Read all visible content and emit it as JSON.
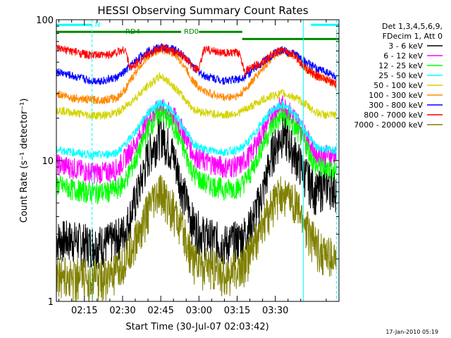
{
  "chart_data": {
    "type": "line",
    "title": "HESSI Observing Summary Count Rates",
    "xlabel": "Start Time (30-Jul-07 02:03:42)",
    "ylabel": "Count Rate (s⁻¹ detector⁻¹)",
    "yscale": "log",
    "xlim_minutes": [
      124,
      235
    ],
    "ylim": [
      1,
      100
    ],
    "x_ticks": [
      "02:15",
      "02:30",
      "02:45",
      "03:00",
      "03:15",
      "03:30"
    ],
    "x_tick_minutes": [
      135,
      150,
      165,
      180,
      195,
      210
    ],
    "y_ticks": [
      "1",
      "10",
      "100"
    ],
    "legend": {
      "placement": "right",
      "header_lines": [
        "Det 1,3,4,5,6,9,",
        "FDecim 1, Att 0"
      ],
      "entries": [
        {
          "label": "3 - 6 keV",
          "color": "#000000"
        },
        {
          "label": "6 - 12 keV",
          "color": "#ff00ff"
        },
        {
          "label": "12 - 25 keV",
          "color": "#00ff00"
        },
        {
          "label": "25 - 50 keV",
          "color": "#00ffff"
        },
        {
          "label": "50 - 100 keV",
          "color": "#d4d400"
        },
        {
          "label": "100 - 300 keV",
          "color": "#ff8800"
        },
        {
          "label": "300 - 800 keV",
          "color": "#0000ff"
        },
        {
          "label": "800 - 7000 keV",
          "color": "#ff0000"
        },
        {
          "label": "7000 - 20000 keV",
          "color": "#808000"
        }
      ]
    },
    "flag_bars": [
      {
        "label": "N",
        "color": "#00ffff",
        "x_start": 124,
        "x_end": 138,
        "y": 92
      },
      {
        "label": "",
        "color": "#00ffff",
        "x_start": 224,
        "x_end": 235,
        "y": 92
      },
      {
        "label": "RD4",
        "color": "#008800",
        "x_start": 124,
        "x_end": 150,
        "y": 82
      },
      {
        "label": "RD0",
        "color": "#008800",
        "x_start": 150,
        "x_end": 173,
        "y": 82
      },
      {
        "label": "",
        "color": "#008800",
        "x_start": 180,
        "x_end": 197,
        "y": 82
      },
      {
        "label": "",
        "color": "#008800",
        "x_start": 197,
        "x_end": 235,
        "y": 73
      }
    ],
    "vertical_lines": [
      {
        "x": 124,
        "color": "#00ffff",
        "style": "solid"
      },
      {
        "x": 138,
        "color": "#00ffff",
        "style": "dashed"
      },
      {
        "x": 221,
        "color": "#00ffff",
        "style": "solid"
      },
      {
        "x": 234,
        "color": "#00ffff",
        "style": "dashed"
      }
    ],
    "series": [
      {
        "name": "3 - 6 keV",
        "color": "#000000",
        "values": [
          [
            124,
            2.8
          ],
          [
            130,
            2.8
          ],
          [
            137,
            2.6
          ],
          [
            143,
            2.6
          ],
          [
            147,
            2.8
          ],
          [
            151,
            3.2
          ],
          [
            156,
            6
          ],
          [
            160,
            11
          ],
          [
            165,
            16
          ],
          [
            170,
            11
          ],
          [
            174,
            6
          ],
          [
            178,
            3.5
          ],
          [
            182,
            3.0
          ],
          [
            190,
            2.6
          ],
          [
            196,
            2.8
          ],
          [
            200,
            3.4
          ],
          [
            205,
            6
          ],
          [
            209,
            12
          ],
          [
            213,
            16
          ],
          [
            218,
            11
          ],
          [
            222,
            8
          ],
          [
            226,
            6
          ],
          [
            230,
            7
          ],
          [
            234,
            6.5
          ]
        ]
      },
      {
        "name": "6 - 12 keV",
        "color": "#ff00ff",
        "values": [
          [
            124,
            9.5
          ],
          [
            130,
            9
          ],
          [
            137,
            8.3
          ],
          [
            143,
            8.3
          ],
          [
            148,
            8.8
          ],
          [
            151,
            10.5
          ],
          [
            156,
            14
          ],
          [
            160,
            20
          ],
          [
            165,
            24
          ],
          [
            170,
            21
          ],
          [
            174,
            16
          ],
          [
            178,
            11
          ],
          [
            182,
            10
          ],
          [
            190,
            9
          ],
          [
            196,
            9.3
          ],
          [
            200,
            11
          ],
          [
            205,
            16
          ],
          [
            209,
            22
          ],
          [
            213,
            25
          ],
          [
            218,
            20
          ],
          [
            222,
            15
          ],
          [
            226,
            11
          ],
          [
            230,
            11
          ],
          [
            234,
            11
          ]
        ]
      },
      {
        "name": "12 - 25 keV",
        "color": "#00ff00",
        "values": [
          [
            124,
            6.8
          ],
          [
            130,
            6.3
          ],
          [
            137,
            6.0
          ],
          [
            143,
            6.0
          ],
          [
            148,
            6.3
          ],
          [
            151,
            7.2
          ],
          [
            156,
            11
          ],
          [
            160,
            17
          ],
          [
            165,
            22
          ],
          [
            170,
            18
          ],
          [
            174,
            12
          ],
          [
            178,
            8
          ],
          [
            182,
            7
          ],
          [
            190,
            6.3
          ],
          [
            196,
            6.5
          ],
          [
            200,
            8
          ],
          [
            205,
            13
          ],
          [
            209,
            18
          ],
          [
            213,
            21
          ],
          [
            218,
            17
          ],
          [
            222,
            13
          ],
          [
            226,
            9
          ],
          [
            230,
            9
          ],
          [
            234,
            8.5
          ]
        ]
      },
      {
        "name": "25 - 50 keV",
        "color": "#00ffff",
        "values": [
          [
            124,
            12
          ],
          [
            130,
            11.5
          ],
          [
            137,
            11
          ],
          [
            143,
            11
          ],
          [
            148,
            11.5
          ],
          [
            151,
            13
          ],
          [
            156,
            17
          ],
          [
            160,
            22
          ],
          [
            165,
            26
          ],
          [
            170,
            22
          ],
          [
            174,
            17
          ],
          [
            178,
            13
          ],
          [
            182,
            12
          ],
          [
            190,
            11.5
          ],
          [
            196,
            12
          ],
          [
            200,
            14
          ],
          [
            205,
            19
          ],
          [
            209,
            23
          ],
          [
            213,
            25
          ],
          [
            218,
            21
          ],
          [
            222,
            16
          ],
          [
            226,
            12.5
          ],
          [
            230,
            12
          ],
          [
            234,
            12
          ]
        ]
      },
      {
        "name": "50 - 100 keV",
        "color": "#d4d400",
        "values": [
          [
            124,
            23
          ],
          [
            130,
            22
          ],
          [
            137,
            21
          ],
          [
            143,
            21
          ],
          [
            148,
            22
          ],
          [
            151,
            24
          ],
          [
            156,
            29
          ],
          [
            160,
            34
          ],
          [
            165,
            40
          ],
          [
            170,
            34
          ],
          [
            174,
            28
          ],
          [
            178,
            23
          ],
          [
            182,
            22
          ],
          [
            190,
            21
          ],
          [
            196,
            22
          ],
          [
            200,
            24
          ],
          [
            205,
            27
          ],
          [
            209,
            29
          ],
          [
            213,
            30
          ],
          [
            218,
            28
          ],
          [
            222,
            25
          ],
          [
            226,
            22
          ],
          [
            230,
            21
          ],
          [
            234,
            21
          ]
        ]
      },
      {
        "name": "100 - 300 keV",
        "color": "#ff8800",
        "values": [
          [
            124,
            30
          ],
          [
            130,
            28
          ],
          [
            137,
            27
          ],
          [
            143,
            27
          ],
          [
            148,
            28
          ],
          [
            151,
            32
          ],
          [
            156,
            45
          ],
          [
            160,
            55
          ],
          [
            165,
            62
          ],
          [
            170,
            58
          ],
          [
            174,
            48
          ],
          [
            178,
            36
          ],
          [
            182,
            31
          ],
          [
            190,
            28
          ],
          [
            196,
            29
          ],
          [
            200,
            35
          ],
          [
            205,
            45
          ],
          [
            209,
            55
          ],
          [
            213,
            60
          ],
          [
            218,
            55
          ],
          [
            222,
            45
          ],
          [
            226,
            40
          ],
          [
            230,
            38
          ],
          [
            234,
            34
          ]
        ]
      },
      {
        "name": "300 - 800 keV",
        "color": "#0000ff",
        "values": [
          [
            124,
            43
          ],
          [
            130,
            40
          ],
          [
            137,
            37
          ],
          [
            143,
            37
          ],
          [
            148,
            39
          ],
          [
            151,
            43
          ],
          [
            156,
            53
          ],
          [
            160,
            60
          ],
          [
            165,
            64
          ],
          [
            170,
            62
          ],
          [
            174,
            56
          ],
          [
            178,
            46
          ],
          [
            182,
            40
          ],
          [
            190,
            37
          ],
          [
            196,
            38
          ],
          [
            200,
            42
          ],
          [
            205,
            50
          ],
          [
            209,
            57
          ],
          [
            213,
            61
          ],
          [
            218,
            57
          ],
          [
            222,
            50
          ],
          [
            226,
            45
          ],
          [
            230,
            43
          ],
          [
            234,
            39
          ]
        ]
      },
      {
        "name": "800 - 7000 keV",
        "color": "#ff0000",
        "values": [
          [
            124,
            62
          ],
          [
            130,
            60
          ],
          [
            137,
            56
          ],
          [
            143,
            56
          ],
          [
            148,
            59
          ],
          [
            151,
            62
          ],
          [
            153,
            45
          ],
          [
            156,
            50
          ],
          [
            160,
            57
          ],
          [
            165,
            63
          ],
          [
            170,
            60
          ],
          [
            174,
            55
          ],
          [
            178,
            45
          ],
          [
            180,
            44
          ],
          [
            182,
            62
          ],
          [
            190,
            58
          ],
          [
            196,
            58
          ],
          [
            198,
            43
          ],
          [
            205,
            50
          ],
          [
            209,
            57
          ],
          [
            213,
            61
          ],
          [
            218,
            55
          ],
          [
            222,
            45
          ],
          [
            226,
            40
          ],
          [
            230,
            38
          ],
          [
            234,
            35
          ]
        ]
      },
      {
        "name": "7000 - 20000 keV",
        "color": "#808000",
        "values": [
          [
            124,
            1.6
          ],
          [
            130,
            1.5
          ],
          [
            137,
            1.5
          ],
          [
            143,
            1.5
          ],
          [
            148,
            1.6
          ],
          [
            151,
            2.0
          ],
          [
            156,
            3.0
          ],
          [
            160,
            4.5
          ],
          [
            165,
            6
          ],
          [
            170,
            4.5
          ],
          [
            174,
            3.0
          ],
          [
            178,
            2.0
          ],
          [
            182,
            1.8
          ],
          [
            190,
            1.6
          ],
          [
            196,
            1.7
          ],
          [
            200,
            2.2
          ],
          [
            205,
            3.5
          ],
          [
            209,
            5
          ],
          [
            213,
            6
          ],
          [
            218,
            5
          ],
          [
            222,
            3.5
          ],
          [
            226,
            2.5
          ],
          [
            230,
            2.2
          ],
          [
            234,
            2.0
          ]
        ]
      }
    ]
  },
  "footer": {
    "timestamp": "17-Jan-2010 05:19"
  }
}
